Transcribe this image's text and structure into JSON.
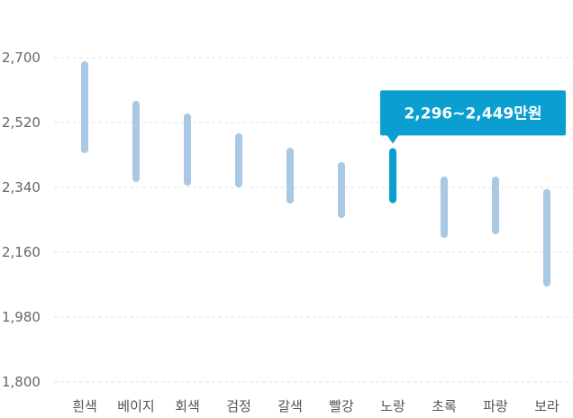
{
  "chart_data": {
    "type": "range-bar",
    "title": "",
    "xlabel": "",
    "ylabel": "",
    "ylim": [
      1800,
      2700
    ],
    "yticks": [
      1800,
      1980,
      2160,
      2340,
      2520,
      2700
    ],
    "ytick_labels": [
      "1,800",
      "1,980",
      "2,160",
      "2,340",
      "2,520",
      "2,700"
    ],
    "categories": [
      "흰색",
      "베이지",
      "회색",
      "검정",
      "갈색",
      "빨강",
      "노랑",
      "초록",
      "파랑",
      "보라"
    ],
    "ranges": [
      [
        2435,
        2690
      ],
      [
        2355,
        2580
      ],
      [
        2345,
        2545
      ],
      [
        2340,
        2490
      ],
      [
        2295,
        2450
      ],
      [
        2255,
        2410
      ],
      [
        2296,
        2449
      ],
      [
        2200,
        2370
      ],
      [
        2210,
        2370
      ],
      [
        2065,
        2335
      ]
    ],
    "highlight_index": 6,
    "tooltip": "2,296~2,449만원",
    "colors": {
      "normal": "#a8c8e3",
      "highlight": "#0a9fd0",
      "tooltip_bg": "#0a9fd0"
    }
  }
}
